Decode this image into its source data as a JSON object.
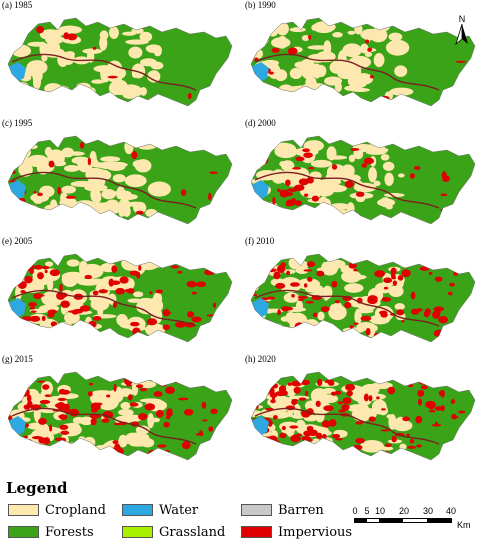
{
  "panels": [
    {
      "label": "(a) 1985",
      "impervious": 0.03
    },
    {
      "label": "(b) 1990",
      "impervious": 0.05
    },
    {
      "label": "(c) 1995",
      "impervious": 0.09
    },
    {
      "label": "(d) 2000",
      "impervious": 0.17
    },
    {
      "label": "(e) 2005",
      "impervious": 0.3
    },
    {
      "label": "(f) 2010",
      "impervious": 0.36
    },
    {
      "label": "(g) 2015",
      "impervious": 0.42
    },
    {
      "label": "(h) 2020",
      "impervious": 0.48
    }
  ],
  "north_arrow": {
    "label": "N"
  },
  "legend": {
    "title": "Legend",
    "items": [
      {
        "label": "Cropland",
        "color": "#fde8b0"
      },
      {
        "label": "Water",
        "color": "#2ea8e0"
      },
      {
        "label": "Barren",
        "color": "#c8c8c8"
      },
      {
        "label": "Forests",
        "color": "#3aa317"
      },
      {
        "label": "Grassland",
        "color": "#a8f000"
      },
      {
        "label": "Impervious",
        "color": "#e00000"
      }
    ]
  },
  "scale_bar": {
    "ticks": [
      "0",
      "5",
      "10",
      "20",
      "30",
      "40"
    ],
    "unit": "Km"
  },
  "colors": {
    "river": "#7a2020",
    "forest": "#3aa317",
    "cropland": "#fde8b0",
    "water": "#2ea8e0",
    "impervious": "#e00000"
  }
}
